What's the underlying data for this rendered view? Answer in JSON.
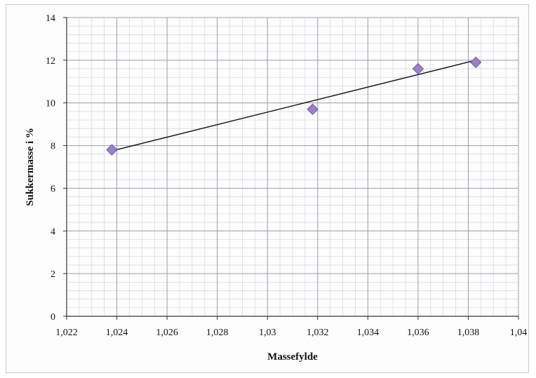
{
  "chart_data": {
    "type": "scatter",
    "xlabel": "Massefylde",
    "ylabel": "Sukkermasse i %",
    "xlim": [
      1.022,
      1.04
    ],
    "ylim": [
      0,
      14
    ],
    "x_ticks": [
      1.022,
      1.024,
      1.026,
      1.028,
      1.03,
      1.032,
      1.034,
      1.036,
      1.038,
      1.04
    ],
    "x_tick_labels": [
      "1,022",
      "1,024",
      "1,026",
      "1,028",
      "1,03",
      "1,032",
      "1,034",
      "1,036",
      "1,038",
      "1,04"
    ],
    "y_ticks": [
      0,
      2,
      4,
      6,
      8,
      10,
      12,
      14
    ],
    "y_tick_labels": [
      "0",
      "2",
      "4",
      "6",
      "8",
      "10",
      "12",
      "14"
    ],
    "grid": true,
    "legend": false,
    "series": [
      {
        "points": [
          {
            "x": 1.0238,
            "y": 7.8
          },
          {
            "x": 1.0318,
            "y": 9.7
          },
          {
            "x": 1.036,
            "y": 11.6
          },
          {
            "x": 1.0383,
            "y": 11.9
          }
        ],
        "marker": "diamond",
        "color": "#9b7fd0"
      }
    ],
    "trendline": {
      "type": "linear",
      "from": {
        "x": 1.0238,
        "y": 7.75
      },
      "to": {
        "x": 1.0383,
        "y": 12.0
      },
      "color": "#111111"
    }
  }
}
